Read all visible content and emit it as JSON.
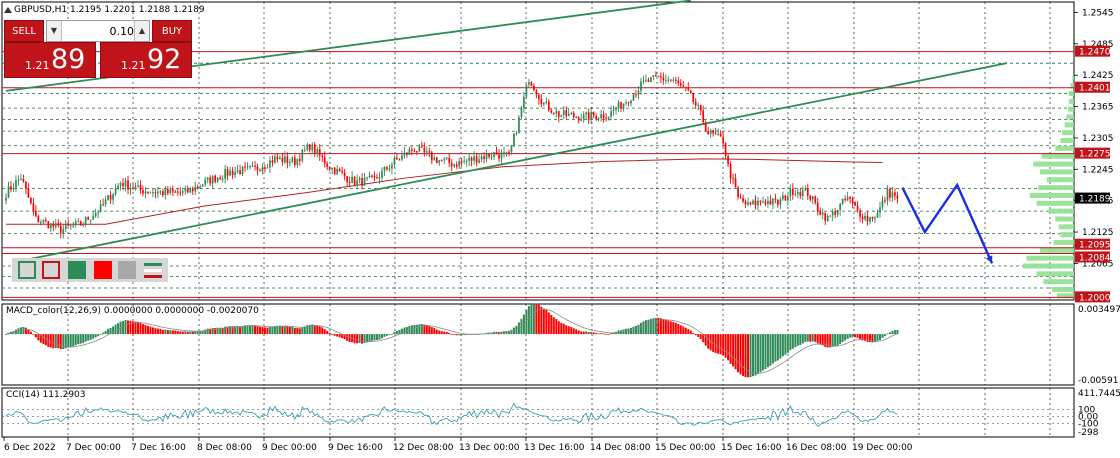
{
  "symbol_header": "GBPUSD,H1  1.2195 1.2201 1.2188 1.2189",
  "trade_panel": {
    "sell_label": "SELL",
    "buy_label": "BUY",
    "lot": "0.10",
    "sell_prefix": "1.21",
    "sell_big": "89",
    "buy_prefix": "1.21",
    "buy_big": "92"
  },
  "indicators": {
    "macd_label": "MACD_color(12,26,9) 0.0000000 0.0000000 -0.0020070",
    "cci_label": "CCI(14) 111.2903"
  },
  "colors": {
    "bull": "#2e8b57",
    "bear": "#ff0000",
    "trendline": "#2e8b57",
    "ma": "#b22222",
    "forecast": "#1a2fe0",
    "tag": "#c0141a",
    "current_tag": "#000000"
  },
  "chart_data": {
    "type": "candlestick",
    "timeframe": "H1",
    "ylim": [
      1.1995,
      1.2565
    ],
    "price_ticks": [
      "1.2545",
      "1.2485",
      "1.2425",
      "1.2365",
      "1.2305",
      "1.2245",
      "1.2185",
      "1.2125",
      "1.2065"
    ],
    "x_tick_labels": [
      "6 Dec 2022",
      "7 Dec 00:00",
      "7 Dec 16:00",
      "8 Dec 08:00",
      "9 Dec 00:00",
      "9 Dec 16:00",
      "12 Dec 08:00",
      "13 Dec 00:00",
      "13 Dec 16:00",
      "14 Dec 08:00",
      "15 Dec 00:00",
      "15 Dec 16:00",
      "16 Dec 08:00",
      "19 Dec 00:00"
    ],
    "level_tags": [
      "1.2470",
      "1.2401",
      "1.2275",
      "1.2095",
      "1.2084",
      "1.2000"
    ],
    "current_price": "1.2189",
    "resistance_levels": [
      1.247,
      1.2401,
      1.2275,
      1.2095,
      1.2084,
      1.2
    ],
    "dashed_levels": [
      1.2448,
      1.239,
      1.2362,
      1.234,
      1.2318,
      1.229,
      1.2208,
      1.2165,
      1.2122,
      1.206,
      1.204,
      1.2018
    ],
    "anchors": [
      [
        0,
        1.22
      ],
      [
        6,
        1.223
      ],
      [
        12,
        1.215
      ],
      [
        22,
        1.213
      ],
      [
        30,
        1.214
      ],
      [
        38,
        1.217
      ],
      [
        46,
        1.222
      ],
      [
        54,
        1.2205
      ],
      [
        64,
        1.22
      ],
      [
        72,
        1.22
      ],
      [
        82,
        1.2225
      ],
      [
        90,
        1.224
      ],
      [
        100,
        1.2245
      ],
      [
        108,
        1.2265
      ],
      [
        116,
        1.226
      ],
      [
        122,
        1.229
      ],
      [
        130,
        1.225
      ],
      [
        140,
        1.222
      ],
      [
        148,
        1.2225
      ],
      [
        156,
        1.226
      ],
      [
        164,
        1.2285
      ],
      [
        172,
        1.2265
      ],
      [
        180,
        1.2255
      ],
      [
        188,
        1.2265
      ],
      [
        196,
        1.2275
      ],
      [
        202,
        1.227
      ],
      [
        206,
        1.234
      ],
      [
        210,
        1.242
      ],
      [
        216,
        1.237
      ],
      [
        222,
        1.235
      ],
      [
        232,
        1.2345
      ],
      [
        242,
        1.235
      ],
      [
        250,
        1.238
      ],
      [
        256,
        1.241
      ],
      [
        262,
        1.242
      ],
      [
        268,
        1.2415
      ],
      [
        274,
        1.239
      ],
      [
        278,
        1.236
      ],
      [
        282,
        1.2315
      ],
      [
        288,
        1.23
      ],
      [
        290,
        1.225
      ],
      [
        294,
        1.219
      ],
      [
        298,
        1.2175
      ],
      [
        304,
        1.2185
      ],
      [
        310,
        1.218
      ],
      [
        316,
        1.2205
      ],
      [
        322,
        1.22
      ],
      [
        326,
        1.217
      ],
      [
        330,
        1.215
      ],
      [
        334,
        1.217
      ],
      [
        338,
        1.219
      ],
      [
        342,
        1.2165
      ],
      [
        346,
        1.215
      ],
      [
        350,
        1.216
      ],
      [
        354,
        1.22
      ],
      [
        358,
        1.2195
      ]
    ],
    "moving_average": [
      [
        0,
        1.214
      ],
      [
        40,
        1.214
      ],
      [
        80,
        1.2175
      ],
      [
        120,
        1.22
      ],
      [
        160,
        1.2228
      ],
      [
        200,
        1.225
      ],
      [
        240,
        1.226
      ],
      [
        280,
        1.2265
      ],
      [
        300,
        1.2264
      ],
      [
        340,
        1.2259
      ],
      [
        352,
        1.2258
      ]
    ],
    "trendlines": [
      [
        [
          0,
          1.2395
        ],
        [
          275,
          1.2568
        ]
      ],
      [
        [
          6,
          1.207
        ],
        [
          402,
          1.2448
        ]
      ]
    ],
    "forecast_path": [
      [
        360,
        1.221
      ],
      [
        369,
        1.2125
      ],
      [
        382,
        1.2215
      ],
      [
        396,
        1.2065
      ]
    ],
    "volume_profile": [
      [
        1.242,
        2
      ],
      [
        1.2405,
        4
      ],
      [
        1.239,
        6
      ],
      [
        1.2375,
        6
      ],
      [
        1.236,
        7
      ],
      [
        1.2345,
        9
      ],
      [
        1.233,
        11
      ],
      [
        1.2315,
        14
      ],
      [
        1.23,
        16
      ],
      [
        1.2285,
        22
      ],
      [
        1.227,
        38
      ],
      [
        1.2255,
        48
      ],
      [
        1.224,
        40
      ],
      [
        1.2225,
        32
      ],
      [
        1.221,
        42
      ],
      [
        1.2195,
        52
      ],
      [
        1.218,
        44
      ],
      [
        1.2165,
        30
      ],
      [
        1.215,
        22
      ],
      [
        1.2135,
        18
      ],
      [
        1.212,
        16
      ],
      [
        1.2105,
        24
      ],
      [
        1.209,
        40
      ],
      [
        1.2075,
        56
      ],
      [
        1.206,
        60
      ],
      [
        1.2045,
        44
      ],
      [
        1.203,
        36
      ],
      [
        1.2015,
        26
      ],
      [
        1.2003,
        20
      ]
    ],
    "macd": {
      "ylim": [
        -0.00591,
        0.003497
      ],
      "ticks": [
        "0.003497",
        "-0.00591"
      ]
    },
    "cci": {
      "ylim": [
        -298,
        411.7445
      ],
      "ticks": [
        "411.7445",
        "100",
        "0.00",
        "-100",
        "-298"
      ]
    }
  }
}
